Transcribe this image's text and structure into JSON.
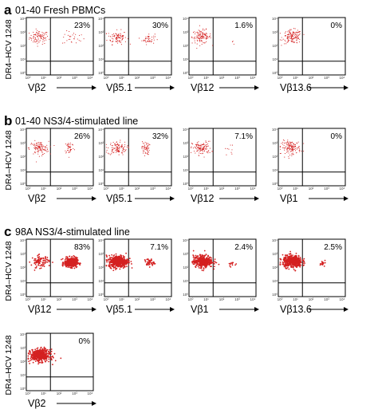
{
  "chart_data": {
    "type": "scatter",
    "ylabel": "DR4–HCV 1248",
    "tick_labels": [
      "10⁰",
      "10¹",
      "10²",
      "10³",
      "10⁴"
    ],
    "dot_color": "#d42020",
    "sections": [
      {
        "letter": "a",
        "title": "01-40 Fresh PBMCs",
        "plots": [
          {
            "vbeta": "Vβ2",
            "percent": "23%",
            "density": "sparse",
            "clusters": [
              {
                "x": 5,
                "y": 450,
                "sx": 0.3,
                "sy": 0.25,
                "n": 90
              },
              {
                "x": 700,
                "y": 400,
                "sx": 0.35,
                "sy": 0.25,
                "n": 28
              }
            ]
          },
          {
            "vbeta": "Vβ5.1",
            "percent": "30%",
            "density": "sparse",
            "clusters": [
              {
                "x": 5,
                "y": 450,
                "sx": 0.3,
                "sy": 0.25,
                "n": 90
              },
              {
                "x": 450,
                "y": 350,
                "sx": 0.2,
                "sy": 0.2,
                "n": 45
              }
            ]
          },
          {
            "vbeta": "Vβ12",
            "percent": "1.6%",
            "density": "sparse",
            "clusters": [
              {
                "x": 5,
                "y": 500,
                "sx": 0.3,
                "sy": 0.25,
                "n": 120
              },
              {
                "x": 500,
                "y": 200,
                "sx": 0.1,
                "sy": 0.1,
                "n": 3
              }
            ]
          },
          {
            "vbeta": "Vβ13.6",
            "percent": "0%",
            "density": "sparse",
            "clusters": [
              {
                "x": 6,
                "y": 500,
                "sx": 0.3,
                "sy": 0.25,
                "n": 140
              }
            ]
          }
        ]
      },
      {
        "letter": "b",
        "title": "01-40 NS3/4-stimulated line",
        "plots": [
          {
            "vbeta": "Vβ2",
            "percent": "26%",
            "density": "sparse",
            "clusters": [
              {
                "x": 5,
                "y": 450,
                "sx": 0.3,
                "sy": 0.25,
                "n": 110
              },
              {
                "x": 400,
                "y": 500,
                "sx": 0.15,
                "sy": 0.25,
                "n": 40
              }
            ]
          },
          {
            "vbeta": "Vβ5.1",
            "percent": "32%",
            "density": "sparse",
            "clusters": [
              {
                "x": 5,
                "y": 450,
                "sx": 0.3,
                "sy": 0.25,
                "n": 110
              },
              {
                "x": 300,
                "y": 450,
                "sx": 0.12,
                "sy": 0.25,
                "n": 55
              }
            ]
          },
          {
            "vbeta": "Vβ12",
            "percent": "7.1%",
            "density": "sparse",
            "clusters": [
              {
                "x": 5,
                "y": 450,
                "sx": 0.3,
                "sy": 0.25,
                "n": 120
              },
              {
                "x": 300,
                "y": 350,
                "sx": 0.15,
                "sy": 0.2,
                "n": 9
              }
            ]
          },
          {
            "vbeta": "Vβ1",
            "percent": "0%",
            "density": "sparse",
            "clusters": [
              {
                "x": 5,
                "y": 500,
                "sx": 0.3,
                "sy": 0.25,
                "n": 140
              }
            ]
          }
        ]
      },
      {
        "letter": "c",
        "title": "98A NS3/4-stimulated line",
        "plots": [
          {
            "vbeta": "Vβ12",
            "percent": "83%",
            "density": "dense",
            "clusters": [
              {
                "x": 6,
                "y": 300,
                "sx": 0.28,
                "sy": 0.22,
                "n": 90
              },
              {
                "x": 500,
                "y": 250,
                "sx": 0.2,
                "sy": 0.17,
                "n": 420
              }
            ]
          },
          {
            "vbeta": "Vβ5.1",
            "percent": "7.1%",
            "density": "dense",
            "clusters": [
              {
                "x": 6,
                "y": 300,
                "sx": 0.3,
                "sy": 0.22,
                "n": 460
              },
              {
                "x": 500,
                "y": 250,
                "sx": 0.15,
                "sy": 0.15,
                "n": 40
              }
            ]
          },
          {
            "vbeta": "Vβ1",
            "percent": "2.4%",
            "density": "dense",
            "clusters": [
              {
                "x": 6,
                "y": 300,
                "sx": 0.3,
                "sy": 0.22,
                "n": 420
              },
              {
                "x": 400,
                "y": 200,
                "sx": 0.12,
                "sy": 0.12,
                "n": 12
              }
            ]
          },
          {
            "vbeta": "Vβ13.6",
            "percent": "2.5%",
            "density": "dense",
            "clusters": [
              {
                "x": 6,
                "y": 300,
                "sx": 0.3,
                "sy": 0.22,
                "n": 460
              },
              {
                "x": 500,
                "y": 250,
                "sx": 0.12,
                "sy": 0.12,
                "n": 14
              }
            ]
          },
          {
            "vbeta": "Vβ2",
            "percent": "0%",
            "density": "dense",
            "clusters": [
              {
                "x": 6,
                "y": 300,
                "sx": 0.3,
                "sy": 0.22,
                "n": 480
              }
            ]
          }
        ]
      }
    ]
  }
}
